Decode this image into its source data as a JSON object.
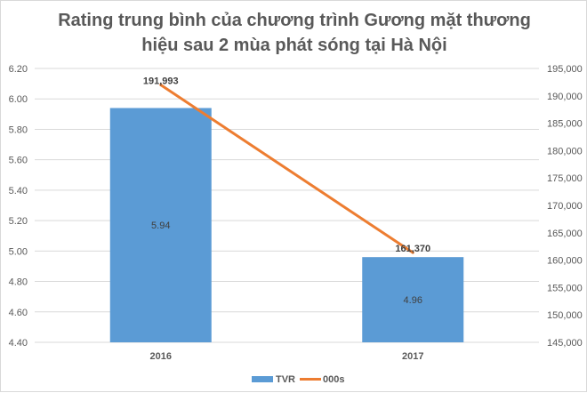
{
  "chart_data": {
    "type": "bar+line",
    "title_lines": [
      "Rating trung bình của chương trình Gương mặt thương",
      "hiệu sau 2 mùa phát sóng tại Hà Nội"
    ],
    "categories": [
      "2016",
      "2017"
    ],
    "series": [
      {
        "name": "TVR",
        "type": "bar",
        "axis": "left",
        "values": [
          5.94,
          4.96
        ],
        "labels": [
          "5.94",
          "4.96"
        ],
        "color": "#5b9bd5"
      },
      {
        "name": "000s",
        "type": "line",
        "axis": "right",
        "values": [
          191993,
          161370
        ],
        "labels": [
          "191,993",
          "161,370"
        ],
        "color": "#ed7d31"
      }
    ],
    "left_axis": {
      "ylim": [
        4.4,
        6.2
      ],
      "ticks": [
        "4.40",
        "4.60",
        "4.80",
        "5.00",
        "5.20",
        "5.40",
        "5.60",
        "5.80",
        "6.00",
        "6.20"
      ]
    },
    "right_axis": {
      "ylim": [
        145000,
        195000
      ],
      "ticks": [
        "145,000",
        "150,000",
        "155,000",
        "160,000",
        "165,000",
        "170,000",
        "175,000",
        "180,000",
        "185,000",
        "190,000",
        "195,000"
      ]
    },
    "legend": "bottom",
    "grid": true
  }
}
